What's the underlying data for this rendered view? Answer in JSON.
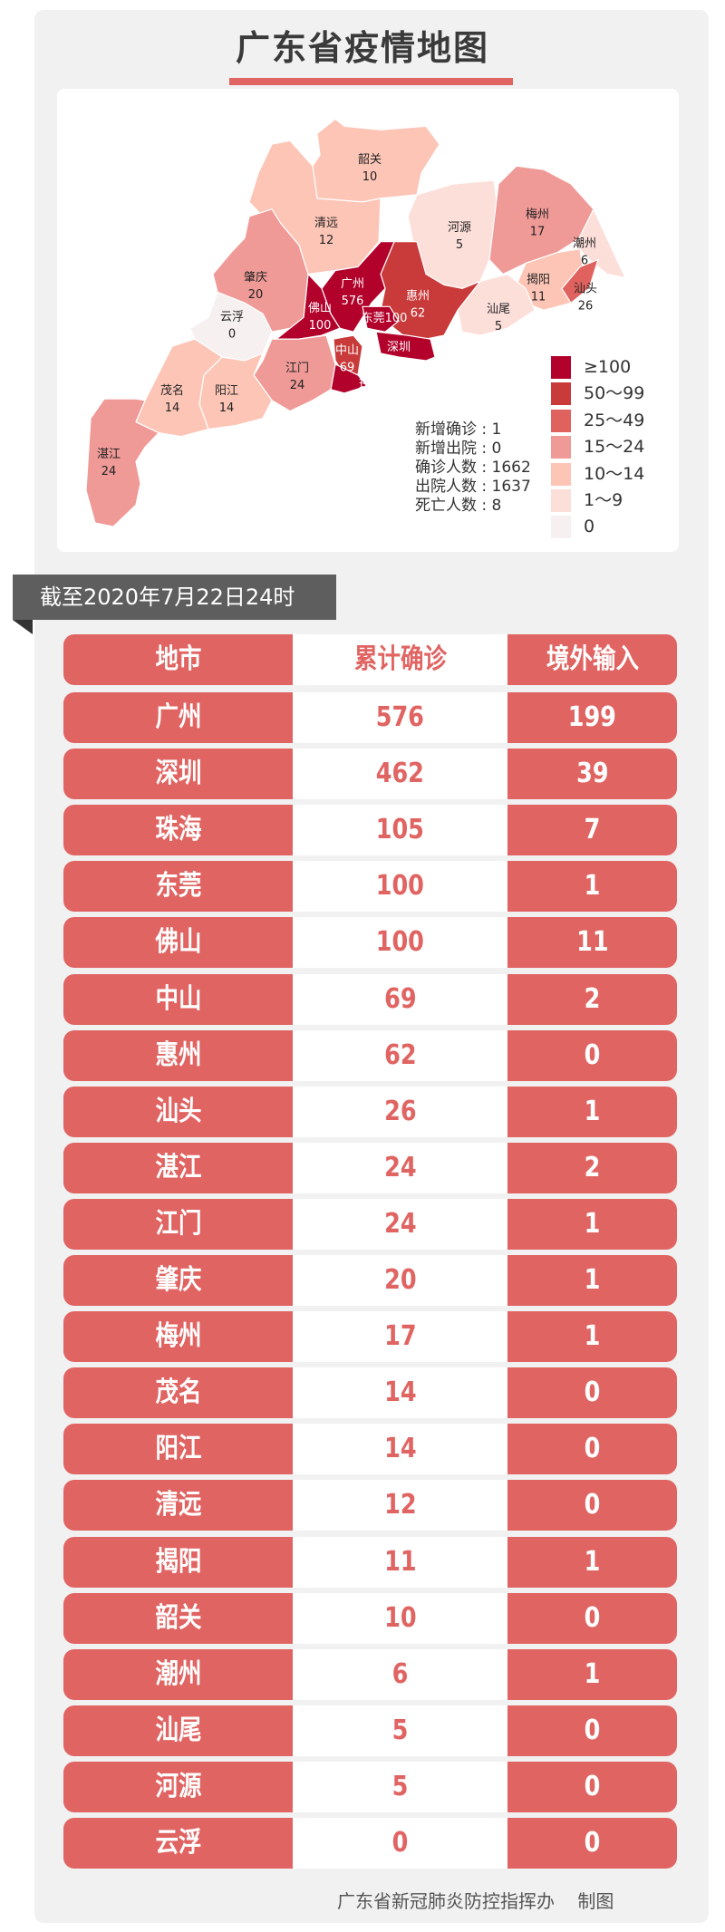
{
  "title": "广东省疫情地图",
  "map": {
    "regions": [
      {
        "id": "shaoguan",
        "name": "韶关",
        "value": 10
      },
      {
        "id": "qingyuan",
        "name": "清远",
        "value": 12
      },
      {
        "id": "heyuan",
        "name": "河源",
        "value": 5
      },
      {
        "id": "meizhou",
        "name": "梅州",
        "value": 17
      },
      {
        "id": "chaozhou",
        "name": "潮州",
        "value": 6
      },
      {
        "id": "jieyang",
        "name": "揭阳",
        "value": 11
      },
      {
        "id": "shantou",
        "name": "汕头",
        "value": 26
      },
      {
        "id": "shanwei",
        "name": "汕尾",
        "value": 5
      },
      {
        "id": "huizhou",
        "name": "惠州",
        "value": 62
      },
      {
        "id": "guangzhou",
        "name": "广州",
        "value": 576
      },
      {
        "id": "dongguan",
        "name": "东莞",
        "value": 100
      },
      {
        "id": "shenzhen",
        "name": "深圳",
        "value": 462
      },
      {
        "id": "foshan",
        "name": "佛山",
        "value": 100
      },
      {
        "id": "zhongshan",
        "name": "中山",
        "value": 69
      },
      {
        "id": "zhuhai",
        "name": "珠海",
        "value": 105
      },
      {
        "id": "jiangmen",
        "name": "江门",
        "value": 24
      },
      {
        "id": "zhaoqing",
        "name": "肇庆",
        "value": 20
      },
      {
        "id": "yunfu",
        "name": "云浮",
        "value": 0
      },
      {
        "id": "yangjiang",
        "name": "阳江",
        "value": 14
      },
      {
        "id": "maoming",
        "name": "茂名",
        "value": 14
      },
      {
        "id": "zhanjiang",
        "name": "湛江",
        "value": 24
      }
    ],
    "legend": [
      {
        "label": "≥100",
        "color": "#b2012b"
      },
      {
        "label": "50～99",
        "color": "#c93a3a"
      },
      {
        "label": "25～49",
        "color": "#e0625f"
      },
      {
        "label": "15～24",
        "color": "#ef9a97"
      },
      {
        "label": "10～14",
        "color": "#fdc5b6"
      },
      {
        "label": "1～9",
        "color": "#fddfda"
      },
      {
        "label": "0",
        "color": "#f6f0f0"
      }
    ],
    "stats": [
      {
        "label": "新增确诊",
        "value": "1"
      },
      {
        "label": "新增出院",
        "value": "0"
      },
      {
        "label": "确诊人数",
        "value": "1662"
      },
      {
        "label": "出院人数",
        "value": "1637"
      },
      {
        "label": "死亡人数",
        "value": "8"
      }
    ]
  },
  "banner": "截至2020年7月22日24时",
  "table": {
    "headers": [
      "地市",
      "累计确诊",
      "境外输入"
    ],
    "rows": [
      [
        "广州",
        "576",
        "199"
      ],
      [
        "深圳",
        "462",
        "39"
      ],
      [
        "珠海",
        "105",
        "7"
      ],
      [
        "东莞",
        "100",
        "1"
      ],
      [
        "佛山",
        "100",
        "11"
      ],
      [
        "中山",
        "69",
        "2"
      ],
      [
        "惠州",
        "62",
        "0"
      ],
      [
        "汕头",
        "26",
        "1"
      ],
      [
        "湛江",
        "24",
        "2"
      ],
      [
        "江门",
        "24",
        "1"
      ],
      [
        "肇庆",
        "20",
        "1"
      ],
      [
        "梅州",
        "17",
        "1"
      ],
      [
        "茂名",
        "14",
        "0"
      ],
      [
        "阳江",
        "14",
        "0"
      ],
      [
        "清远",
        "12",
        "0"
      ],
      [
        "揭阳",
        "11",
        "1"
      ],
      [
        "韶关",
        "10",
        "0"
      ],
      [
        "潮州",
        "6",
        "1"
      ],
      [
        "汕尾",
        "5",
        "0"
      ],
      [
        "河源",
        "5",
        "0"
      ],
      [
        "云浮",
        "0",
        "0"
      ]
    ]
  },
  "footer": "广东省新冠肺炎防控指挥办    制图",
  "colors": {
    "accent": "#e06462",
    "banner": "#5e5e5e"
  }
}
